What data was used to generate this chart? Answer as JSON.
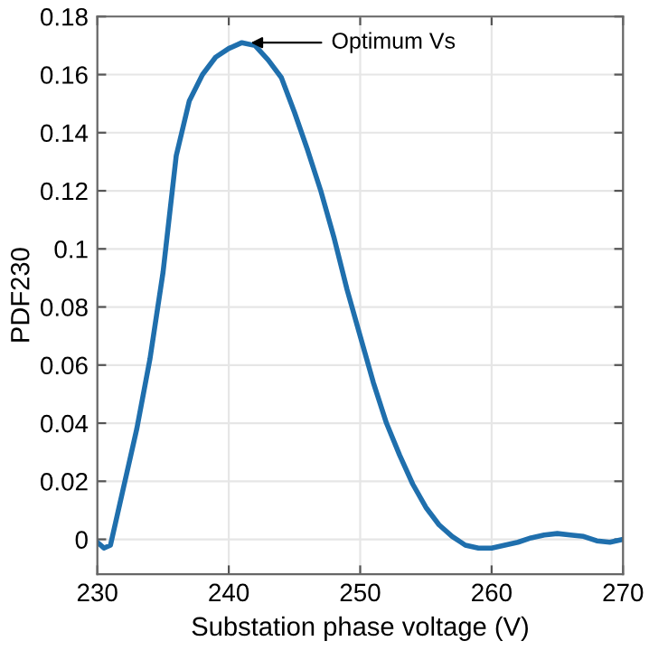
{
  "chart_data": {
    "type": "line",
    "xlabel": "Substation phase voltage (V)",
    "ylabel": "PDF230",
    "x": [
      230,
      230.5,
      231,
      232,
      233,
      234,
      235,
      236,
      237,
      238,
      239,
      240,
      241,
      242,
      243,
      244,
      245,
      246,
      247,
      248,
      249,
      250,
      251,
      252,
      253,
      254,
      255,
      256,
      257,
      258,
      259,
      260,
      261,
      262,
      263,
      264,
      265,
      266,
      267,
      268,
      269,
      270
    ],
    "series": [
      {
        "color": "#1f6fad",
        "values": [
          -0.001,
          -0.003,
          -0.002,
          0.018,
          0.038,
          0.062,
          0.092,
          0.132,
          0.151,
          0.16,
          0.166,
          0.169,
          0.171,
          0.17,
          0.165,
          0.159,
          0.147,
          0.134,
          0.12,
          0.104,
          0.086,
          0.07,
          0.054,
          0.04,
          0.029,
          0.019,
          0.011,
          0.005,
          0.001,
          -0.002,
          -0.003,
          -0.003,
          -0.002,
          -0.001,
          0.0005,
          0.0015,
          0.002,
          0.0015,
          0.001,
          -0.0005,
          -0.001,
          0.0
        ]
      }
    ],
    "annotations": [
      {
        "text": "Optimum Vs",
        "x": 241.3,
        "y": 0.171
      }
    ],
    "xlim": [
      230,
      270
    ],
    "ylim": [
      -0.012,
      0.18
    ],
    "xticks": [
      230,
      240,
      250,
      260,
      270
    ],
    "yticks": [
      0,
      0.02,
      0.04,
      0.06,
      0.08,
      0.1,
      0.12,
      0.14,
      0.16,
      0.18
    ],
    "grid": true,
    "marker": "none",
    "line_style": "solid"
  }
}
